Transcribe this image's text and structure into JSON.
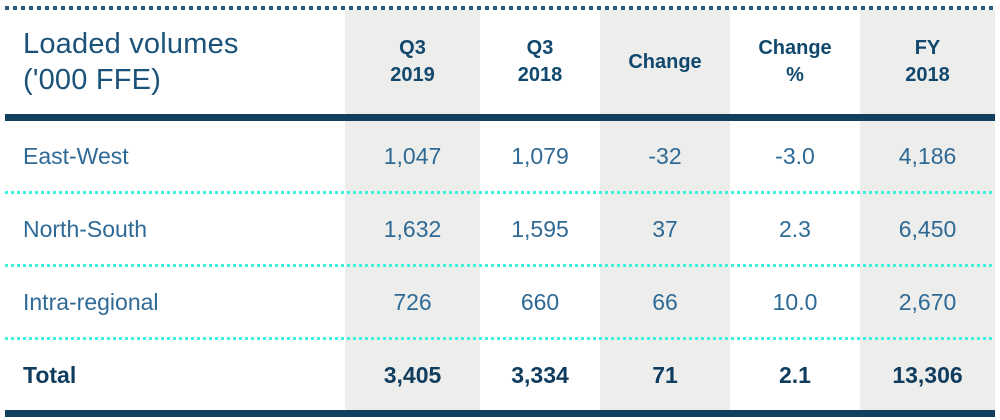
{
  "table": {
    "header": {
      "title_line1": "Loaded volumes",
      "title_line2": "('000 FFE)",
      "columns": [
        {
          "line1": "Q3",
          "line2": "2019",
          "shaded": true
        },
        {
          "line1": "Q3",
          "line2": "2018",
          "shaded": false
        },
        {
          "line1": "Change",
          "line2": "",
          "shaded": true
        },
        {
          "line1": "Change",
          "line2": "%",
          "shaded": false
        },
        {
          "line1": "FY",
          "line2": "2018",
          "shaded": true
        }
      ]
    },
    "rows": [
      {
        "label": "East-West",
        "values": [
          "1,047",
          "1,079",
          "-32",
          "-3.0",
          "4,186"
        ]
      },
      {
        "label": "North-South",
        "values": [
          "1,632",
          "1,595",
          "37",
          "2.3",
          "6,450"
        ]
      },
      {
        "label": "Intra-regional",
        "values": [
          "726",
          "660",
          "66",
          "10.0",
          "2,670"
        ]
      }
    ],
    "total_row": {
      "label": "Total",
      "values": [
        "3,405",
        "3,334",
        "71",
        "2.1",
        "13,306"
      ]
    }
  },
  "colors": {
    "navy_rule": "#123f60",
    "top_dots": "#2b5a7a",
    "cyan_dots": "#3cf2dc",
    "column_shade": "#ededec",
    "title_text": "#1b527a",
    "header_text": "#11486e",
    "body_text": "#2e6a95",
    "total_text": "#103c5e"
  },
  "chart_data": {
    "type": "table",
    "title": "Loaded volumes ('000 FFE)",
    "columns": [
      "Q3 2019",
      "Q3 2018",
      "Change",
      "Change %",
      "FY 2018"
    ],
    "rows": [
      {
        "label": "East-West",
        "q3_2019": 1047,
        "q3_2018": 1079,
        "change": -32,
        "change_pct": -3.0,
        "fy_2018": 4186
      },
      {
        "label": "North-South",
        "q3_2019": 1632,
        "q3_2018": 1595,
        "change": 37,
        "change_pct": 2.3,
        "fy_2018": 6450
      },
      {
        "label": "Intra-regional",
        "q3_2019": 726,
        "q3_2018": 660,
        "change": 66,
        "change_pct": 10.0,
        "fy_2018": 2670
      },
      {
        "label": "Total",
        "q3_2019": 3405,
        "q3_2018": 3334,
        "change": 71,
        "change_pct": 2.1,
        "fy_2018": 13306
      }
    ],
    "layout": {
      "shaded_columns": [
        "Q3 2019",
        "Change",
        "FY 2018"
      ],
      "grid": "dotted-row-separators"
    }
  }
}
